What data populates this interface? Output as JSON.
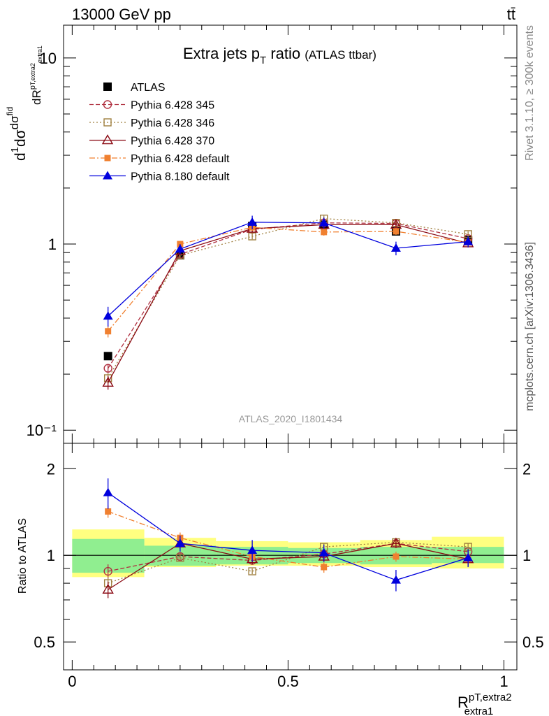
{
  "header": {
    "energy_label": "13000 GeV pp",
    "process_label": "tt̄"
  },
  "side_labels": {
    "rivet": "Rivet 3.1.10, ≥ 300k events",
    "mcplots": "mcplots.cern.ch [arXiv:1306.3436]"
  },
  "analysis_id": "ATLAS_2020_I1801434",
  "colors": {
    "atlas": "#000000",
    "p345": "#b03040",
    "p346": "#a08040",
    "p370": "#8b0a14",
    "p6def": "#f08030",
    "p8def": "#0000dd",
    "band_inner": "#90ee90",
    "band_outer": "#ffff80"
  },
  "chart_data": [
    {
      "type": "line",
      "title": "Extra jets p_T ratio",
      "title_suffix": "(ATLAS ttbar)",
      "ylabel": "1/σ dσ^fid/dR^pT,extra2_extra1",
      "yscale": "log",
      "ylim": [
        0.085,
        15
      ],
      "xlim": [
        -0.02,
        1.03
      ],
      "ytick_labels": [
        "10",
        "1",
        "10⁻¹"
      ],
      "legend_position": "top-left",
      "series": [
        {
          "name": "ATLAS",
          "key": "atlas",
          "marker": "square-filled",
          "line": "none",
          "x": [
            0.083,
            0.25,
            0.417,
            0.583,
            0.75,
            0.917
          ],
          "y": [
            0.25,
            0.87,
            1.25,
            1.27,
            1.17,
            1.05
          ]
        },
        {
          "name": "Pythia 6.428 345",
          "key": "p345",
          "marker": "circle-open",
          "line": "dashed",
          "x": [
            0.083,
            0.25,
            0.417,
            0.583,
            0.75,
            0.917
          ],
          "y": [
            0.215,
            0.88,
            1.2,
            1.3,
            1.29,
            1.07
          ],
          "yerr": [
            0.012,
            0.03,
            0.05,
            0.05,
            0.05,
            0.04
          ]
        },
        {
          "name": "Pythia 6.428 346",
          "key": "p346",
          "marker": "square-open",
          "line": "dotted",
          "x": [
            0.083,
            0.25,
            0.417,
            0.583,
            0.75,
            0.917
          ],
          "y": [
            0.19,
            0.87,
            1.1,
            1.37,
            1.3,
            1.13
          ],
          "yerr": [
            0.012,
            0.03,
            0.04,
            0.05,
            0.05,
            0.04
          ]
        },
        {
          "name": "Pythia 6.428 370",
          "key": "p370",
          "marker": "triangle-open",
          "line": "solid",
          "x": [
            0.083,
            0.25,
            0.417,
            0.583,
            0.75,
            0.917
          ],
          "y": [
            0.18,
            0.92,
            1.21,
            1.27,
            1.27,
            1.01
          ],
          "yerr": [
            0.015,
            0.04,
            0.05,
            0.05,
            0.05,
            0.05
          ]
        },
        {
          "name": "Pythia 6.428 default",
          "key": "p6def",
          "marker": "square-filled-small",
          "line": "dashdot",
          "x": [
            0.083,
            0.25,
            0.417,
            0.583,
            0.75,
            0.917
          ],
          "y": [
            0.34,
            1.0,
            1.23,
            1.16,
            1.17,
            1.02
          ],
          "yerr": [
            0.025,
            0.04,
            0.05,
            0.05,
            0.05,
            0.04
          ]
        },
        {
          "name": "Pythia 8.180 default",
          "key": "p8def",
          "marker": "triangle-filled",
          "line": "solid",
          "x": [
            0.083,
            0.25,
            0.417,
            0.583,
            0.75,
            0.917
          ],
          "y": [
            0.41,
            0.94,
            1.31,
            1.3,
            0.95,
            1.03
          ],
          "yerr": [
            0.05,
            0.06,
            0.11,
            0.09,
            0.08,
            0.07
          ]
        }
      ]
    },
    {
      "type": "line",
      "ylabel": "Ratio to ATLAS",
      "xlabel": "R^pT,extra2_extra1",
      "yscale": "log",
      "ylim": [
        0.4,
        2.45
      ],
      "xlim": [
        -0.02,
        1.03
      ],
      "xtick_labels": [
        "0",
        "0.5",
        "1"
      ],
      "ytick_labels": [
        "2",
        "1",
        "0.5"
      ],
      "bands": {
        "bin_edges": [
          0,
          0.167,
          0.333,
          0.5,
          0.667,
          0.833,
          1.0
        ],
        "inner": [
          [
            0.87,
            1.14
          ],
          [
            0.92,
            1.08
          ],
          [
            0.93,
            1.07
          ],
          [
            0.94,
            1.06
          ],
          [
            0.93,
            1.07
          ],
          [
            0.94,
            1.07
          ]
        ],
        "outer": [
          [
            0.84,
            1.23
          ],
          [
            0.91,
            1.15
          ],
          [
            0.92,
            1.12
          ],
          [
            0.92,
            1.11
          ],
          [
            0.91,
            1.13
          ],
          [
            0.9,
            1.16
          ]
        ]
      },
      "series": [
        {
          "name": "Pythia 6.428 345",
          "key": "p345",
          "x": [
            0.083,
            0.25,
            0.417,
            0.583,
            0.75,
            0.917
          ],
          "y": [
            0.88,
            0.99,
            0.96,
            1.01,
            1.1,
            1.03
          ],
          "yerr": [
            0.05,
            0.03,
            0.03,
            0.03,
            0.03,
            0.03
          ]
        },
        {
          "name": "Pythia 6.428 346",
          "key": "p346",
          "x": [
            0.083,
            0.25,
            0.417,
            0.583,
            0.75,
            0.917
          ],
          "y": [
            0.8,
            0.98,
            0.88,
            1.07,
            1.11,
            1.07
          ],
          "yerr": [
            0.04,
            0.03,
            0.02,
            0.03,
            0.03,
            0.03
          ]
        },
        {
          "name": "Pythia 6.428 370",
          "key": "p370",
          "x": [
            0.083,
            0.25,
            0.417,
            0.583,
            0.75,
            0.917
          ],
          "y": [
            0.76,
            1.1,
            0.97,
            0.99,
            1.1,
            0.97
          ],
          "yerr": [
            0.05,
            0.05,
            0.04,
            0.04,
            0.04,
            0.05
          ]
        },
        {
          "name": "Pythia 6.428 default",
          "key": "p6def",
          "x": [
            0.083,
            0.25,
            0.417,
            0.583,
            0.75,
            0.917
          ],
          "y": [
            1.42,
            1.15,
            0.99,
            0.91,
            0.99,
            0.97
          ],
          "yerr": [
            0.07,
            0.05,
            0.04,
            0.04,
            0.04,
            0.04
          ]
        },
        {
          "name": "Pythia 8.180 default",
          "key": "p8def",
          "x": [
            0.083,
            0.25,
            0.417,
            0.583,
            0.75,
            0.917
          ],
          "y": [
            1.65,
            1.1,
            1.04,
            1.02,
            0.82,
            0.98
          ],
          "yerr": [
            0.2,
            0.07,
            0.09,
            0.07,
            0.07,
            0.07
          ]
        }
      ]
    }
  ]
}
